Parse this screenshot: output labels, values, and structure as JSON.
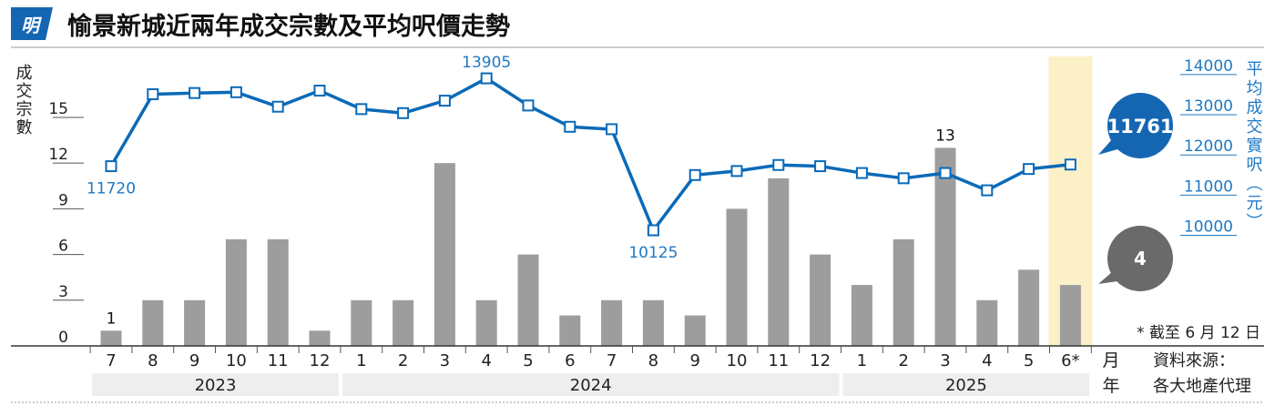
{
  "logo_text": "明",
  "title": "愉景新城近兩年成交宗數及平均呎價走勢",
  "left_axis_label": "成交宗數",
  "right_axis_label": "平均成交實呎（元）",
  "month_axis_label": "月",
  "year_axis_label": "年",
  "footnote": "* 截至 6 月 12 日",
  "source_label": "資料來源：",
  "source_value": "各大地產代理",
  "latest_price_bubble": "11761",
  "latest_volume_bubble": "4",
  "colors": {
    "bar": "#9d9d9d",
    "line": "#0a6ab8",
    "price_label": "#1f79c4",
    "highlight": "#fbf0c8",
    "price_bubble": "#1466b3",
    "volume_bubble": "#6a6a6a",
    "year_band": "#eeeeee"
  },
  "chart_data": {
    "type": "bar+line",
    "categories": [
      "7",
      "8",
      "9",
      "10",
      "11",
      "12",
      "1",
      "2",
      "3",
      "4",
      "5",
      "6",
      "7",
      "8",
      "9",
      "10",
      "11",
      "12",
      "1",
      "2",
      "3",
      "4",
      "5",
      "6*"
    ],
    "years": [
      {
        "label": "2023",
        "months": 6
      },
      {
        "label": "2024",
        "months": 12
      },
      {
        "label": "2025",
        "months": 6
      }
    ],
    "series": [
      {
        "axis": "left",
        "values": [
          1,
          3,
          3,
          7,
          7,
          1,
          3,
          3,
          12,
          3,
          6,
          2,
          3,
          3,
          2,
          9,
          11,
          6,
          4,
          7,
          13,
          3,
          5,
          4
        ]
      },
      {
        "axis": "right",
        "values": [
          11720,
          13510,
          13540,
          13560,
          13200,
          13600,
          13140,
          13040,
          13350,
          13905,
          13230,
          12700,
          12640,
          10125,
          11500,
          11600,
          11750,
          11720,
          11550,
          11420,
          11550,
          11120,
          11650,
          11761
        ]
      }
    ],
    "data_labels": [
      {
        "series": 0,
        "index": 0,
        "text": "1"
      },
      {
        "series": 0,
        "index": 20,
        "text": "13"
      },
      {
        "series": 1,
        "index": 0,
        "text": "11720"
      },
      {
        "series": 1,
        "index": 9,
        "text": "13905"
      },
      {
        "series": 1,
        "index": 13,
        "text": "10125"
      }
    ],
    "left_ticks": [
      "0",
      "3",
      "6",
      "9",
      "12",
      "15"
    ],
    "left_ylim": [
      0,
      19
    ],
    "right_ticks": [
      "10000",
      "11000",
      "12000",
      "13000",
      "14000"
    ],
    "right_ylim": [
      7250,
      14450
    ],
    "highlight_index": 23
  }
}
